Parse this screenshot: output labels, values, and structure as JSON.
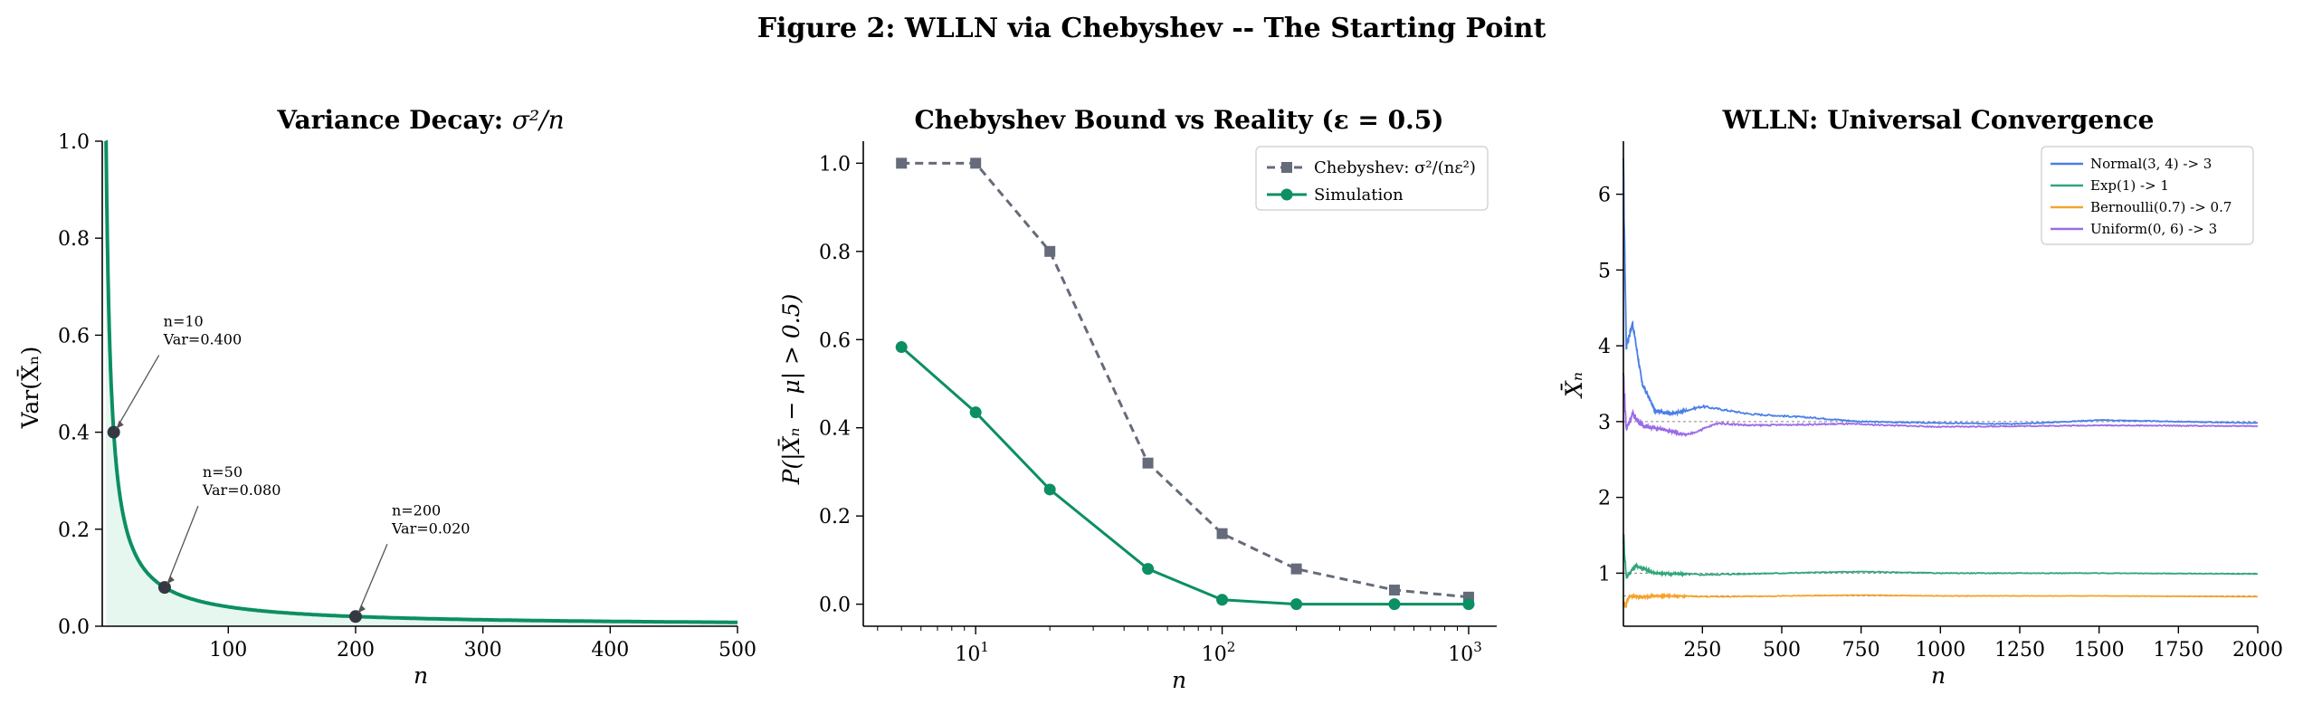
{
  "suptitle": "Figure 2: WLLN via Chebyshev -- The Starting Point",
  "chart_data": [
    {
      "type": "line",
      "title": "Variance Decay: σ²/n",
      "title_plain": "Variance Decay: ",
      "title_math": "σ²/n",
      "xlabel": "n",
      "ylabel": "Var(X̄ₙ)",
      "xlim": [
        1,
        500
      ],
      "ylim": [
        0,
        1.0
      ],
      "xticks": [
        100,
        200,
        300,
        400,
        500
      ],
      "yticks": [
        "0.0",
        "0.2",
        "0.4",
        "0.6",
        "0.8",
        "1.0"
      ],
      "ytick_values": [
        0,
        0.2,
        0.4,
        0.6,
        0.8,
        1.0
      ],
      "curve": {
        "formula": "4/n",
        "sigma2": 4,
        "color": "#0b8f63",
        "fill": "#e6f7ef"
      },
      "points": [
        {
          "n": 10,
          "var": 0.4,
          "label": [
            "n=10",
            "Var=0.400"
          ]
        },
        {
          "n": 50,
          "var": 0.08,
          "label": [
            "n=50",
            "Var=0.080"
          ]
        },
        {
          "n": 200,
          "var": 0.02,
          "label": [
            "n=200",
            "Var=0.020"
          ]
        }
      ],
      "grid": false
    },
    {
      "type": "line",
      "title": "Chebyshev Bound vs Reality (ε = 0.5)",
      "xlabel": "n",
      "ylabel": "P(|X̄ₙ − μ| > 0.5)",
      "xscale": "log",
      "xlim": [
        3.5,
        1300
      ],
      "ylim": [
        -0.05,
        1.05
      ],
      "xticks": [
        {
          "value": 10,
          "label": "10",
          "exp": "1"
        },
        {
          "value": 100,
          "label": "10",
          "exp": "2"
        },
        {
          "value": 1000,
          "label": "10",
          "exp": "3"
        }
      ],
      "yticks": [
        "0.0",
        "0.2",
        "0.4",
        "0.6",
        "0.8",
        "1.0"
      ],
      "ytick_values": [
        0,
        0.2,
        0.4,
        0.6,
        0.8,
        1.0
      ],
      "x": [
        5,
        10,
        20,
        50,
        100,
        200,
        500,
        1000
      ],
      "series": [
        {
          "name": "Chebyshev: σ²/(nε²)",
          "values": [
            1.0,
            1.0,
            0.8,
            0.32,
            0.16,
            0.08,
            0.032,
            0.016
          ],
          "color": "#656b7a",
          "style": "dashed",
          "marker": "square"
        },
        {
          "name": "Simulation",
          "values": [
            0.583,
            0.435,
            0.26,
            0.08,
            0.01,
            0.0,
            0.0,
            0.0
          ],
          "color": "#0b8f63",
          "style": "solid",
          "marker": "circle"
        }
      ],
      "legend": "top-right",
      "grid": false
    },
    {
      "type": "line",
      "title": "WLLN: Universal Convergence",
      "xlabel": "n",
      "ylabel": "X̄ₙ",
      "xlim": [
        1,
        2000
      ],
      "ylim": [
        0.3,
        6.7
      ],
      "xticks": [
        250,
        500,
        750,
        1000,
        1250,
        1500,
        1750,
        2000
      ],
      "yticks": [
        "1",
        "2",
        "3",
        "4",
        "5",
        "6"
      ],
      "ytick_values": [
        1,
        2,
        3,
        4,
        5,
        6
      ],
      "series": [
        {
          "name": "Normal(3, 4) -> 3",
          "limit": 3,
          "color": "#4a7fe8",
          "approx_path": [
            [
              1,
              6.3
            ],
            [
              10,
              4.0
            ],
            [
              30,
              4.3
            ],
            [
              60,
              3.5
            ],
            [
              100,
              3.15
            ],
            [
              150,
              3.1
            ],
            [
              250,
              3.2
            ],
            [
              400,
              3.1
            ],
            [
              600,
              3.05
            ],
            [
              750,
              3.0
            ],
            [
              1000,
              2.98
            ],
            [
              1250,
              2.97
            ],
            [
              1500,
              3.02
            ],
            [
              1750,
              3.0
            ],
            [
              2000,
              2.98
            ]
          ]
        },
        {
          "name": "Exp(1) -> 1",
          "limit": 1,
          "color": "#2fa77a",
          "approx_path": [
            [
              1,
              1.5
            ],
            [
              10,
              0.95
            ],
            [
              40,
              1.1
            ],
            [
              100,
              1.0
            ],
            [
              250,
              0.98
            ],
            [
              500,
              1.0
            ],
            [
              750,
              1.02
            ],
            [
              1000,
              1.0
            ],
            [
              1500,
              1.0
            ],
            [
              2000,
              0.99
            ]
          ]
        },
        {
          "name": "Bernoulli(0.7) -> 0.7",
          "limit": 0.7,
          "color": "#f5a32a",
          "approx_path": [
            [
              1,
              0.6
            ],
            [
              8,
              0.58
            ],
            [
              20,
              0.7
            ],
            [
              50,
              0.68
            ],
            [
              100,
              0.7
            ],
            [
              300,
              0.69
            ],
            [
              750,
              0.71
            ],
            [
              1000,
              0.7
            ],
            [
              1500,
              0.7
            ],
            [
              2000,
              0.69
            ]
          ]
        },
        {
          "name": "Uniform(0, 6) -> 3",
          "limit": 3,
          "color": "#9a6be8",
          "approx_path": [
            [
              1,
              3.6
            ],
            [
              10,
              2.9
            ],
            [
              30,
              3.1
            ],
            [
              60,
              2.95
            ],
            [
              120,
              2.9
            ],
            [
              200,
              2.82
            ],
            [
              300,
              2.98
            ],
            [
              400,
              2.95
            ],
            [
              700,
              2.97
            ],
            [
              1000,
              2.93
            ],
            [
              1500,
              2.95
            ],
            [
              2000,
              2.94
            ]
          ]
        }
      ],
      "reference_lines": [
        3,
        1,
        0.7
      ],
      "legend": "top-right",
      "grid": false
    }
  ]
}
